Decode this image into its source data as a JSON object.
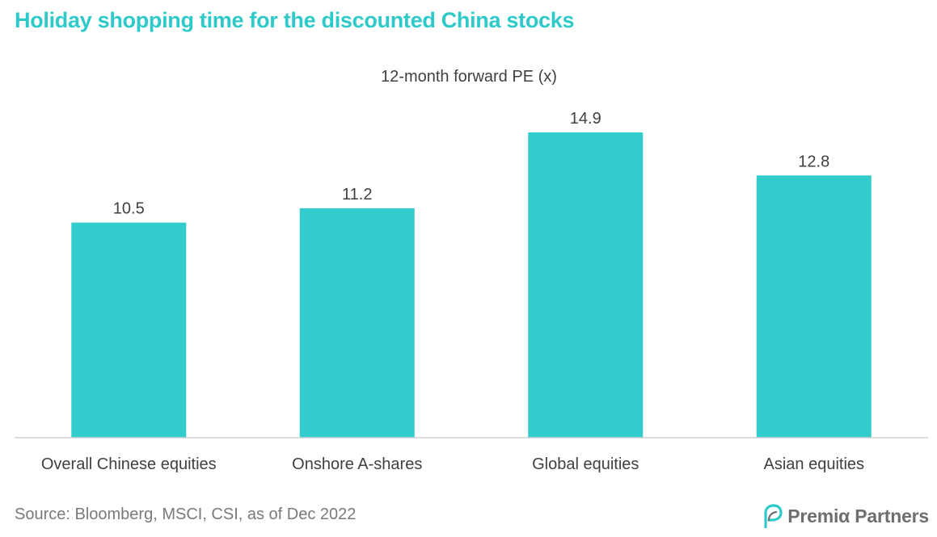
{
  "headline": "Holiday shopping time for the discounted China stocks",
  "source": "Source: Bloomberg, MSCI, CSI, as of Dec 2022",
  "brand": {
    "name": "Premiα Partners",
    "logo_icon": "p-leaf-logo-icon",
    "colors": {
      "leaf": "#2ec9c9",
      "text": "#6e6e6e"
    }
  },
  "colors": {
    "bar": "#33cccc",
    "headline": "#2ec9c9",
    "axis": "#d0d0d0",
    "label": "#404040"
  },
  "chart_data": {
    "type": "bar",
    "title": "12-month forward PE (x)",
    "categories": [
      "Overall Chinese equities",
      "Onshore A-shares",
      "Global equities",
      "Asian equities"
    ],
    "values": [
      10.5,
      11.2,
      14.9,
      12.8
    ],
    "value_labels": [
      "10.5",
      "11.2",
      "14.9",
      "12.8"
    ],
    "xlabel": "",
    "ylabel": "",
    "ylim": [
      0,
      14.9
    ],
    "grid": false,
    "legend": "none"
  }
}
